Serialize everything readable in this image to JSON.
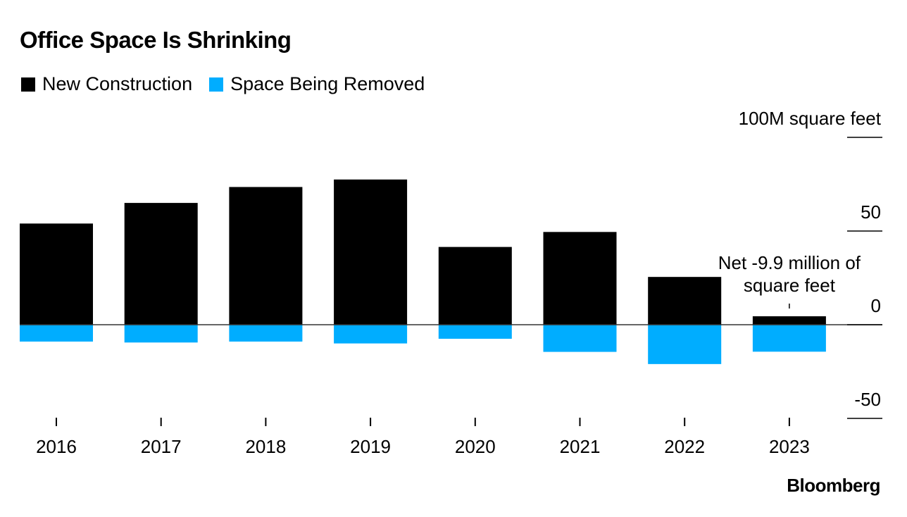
{
  "title": "Office Space Is Shrinking",
  "source": "Bloomberg",
  "colors": {
    "new_construction": "#000000",
    "space_removed": "#00adff",
    "zero_line": "#333333"
  },
  "chart_data": {
    "type": "bar",
    "stacked": true,
    "title": "Office Space Is Shrinking",
    "categories": [
      "2016",
      "2017",
      "2018",
      "2019",
      "2020",
      "2021",
      "2022",
      "2023"
    ],
    "series": [
      {
        "name": "New Construction",
        "color": "#000000",
        "values": [
          54,
          65,
          73.5,
          77.5,
          41.5,
          49.5,
          25.5,
          4.5
        ]
      },
      {
        "name": "Space Being Removed",
        "color": "#00adff",
        "values": [
          -9,
          -9.5,
          -9,
          -10,
          -7.5,
          -14.5,
          -21,
          -14.4
        ]
      }
    ],
    "y_unit_label": "100M square feet",
    "yticks": [
      {
        "value": 100,
        "label": "100M square feet"
      },
      {
        "value": 50,
        "label": "50"
      },
      {
        "value": 0,
        "label": "0"
      },
      {
        "value": -50,
        "label": "-50"
      }
    ],
    "ylim": [
      -50,
      100
    ],
    "axis_position": "right",
    "legend_position": "top-left",
    "grid": false,
    "annotations": [
      {
        "category": "2023",
        "lines": [
          "Net -9.9 million of",
          "square feet"
        ]
      }
    ]
  }
}
